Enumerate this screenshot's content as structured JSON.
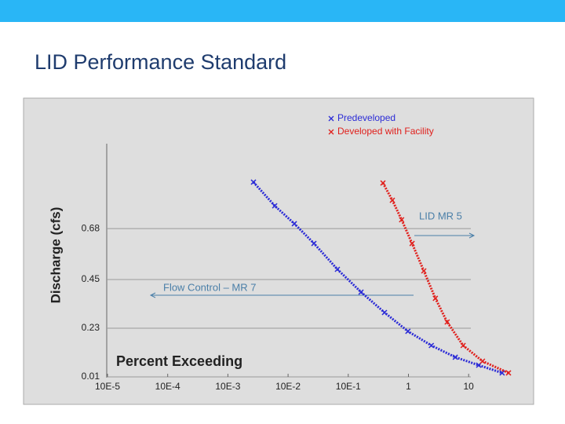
{
  "slide_title": "LID Performance Standard",
  "chart_data": {
    "type": "scatter",
    "xlabel": "Percent Exceeding",
    "ylabel": "Discharge (cfs)",
    "log_x": true,
    "grid": true,
    "legend": "upper right",
    "annotations": [
      "LID MR 5",
      "Flow Control – MR 7"
    ],
    "xlim": [
      1e-05,
      50
    ],
    "ylim": [
      0.01,
      1.08
    ],
    "xticks": [
      {
        "value": 1e-05,
        "label": "10E-5"
      },
      {
        "value": 0.0001,
        "label": "10E-4"
      },
      {
        "value": 0.001,
        "label": "10E-3"
      },
      {
        "value": 0.01,
        "label": "10E-2"
      },
      {
        "value": 0.1,
        "label": "10E-1"
      },
      1,
      10
    ],
    "yticks": [
      0.01,
      0.23,
      0.45,
      0.68
    ],
    "series": [
      {
        "name": "Predeveloped",
        "color": "#2b2bd6",
        "x": [
          0.00266,
          0.006,
          0.0127,
          0.0269,
          0.066,
          0.163,
          0.4,
          0.98,
          2.4,
          6.0,
          14.7,
          36
        ],
        "values": [
          0.89,
          0.783,
          0.702,
          0.613,
          0.496,
          0.393,
          0.301,
          0.216,
          0.152,
          0.099,
          0.063,
          0.028
        ]
      },
      {
        "name": "Developed with Facility",
        "color": "#e0201c",
        "x": [
          0.377,
          0.54,
          0.77,
          1.15,
          1.8,
          2.8,
          4.4,
          8.1,
          17,
          46
        ],
        "values": [
          0.886,
          0.808,
          0.72,
          0.613,
          0.489,
          0.365,
          0.258,
          0.152,
          0.081,
          0.028
        ]
      }
    ]
  }
}
